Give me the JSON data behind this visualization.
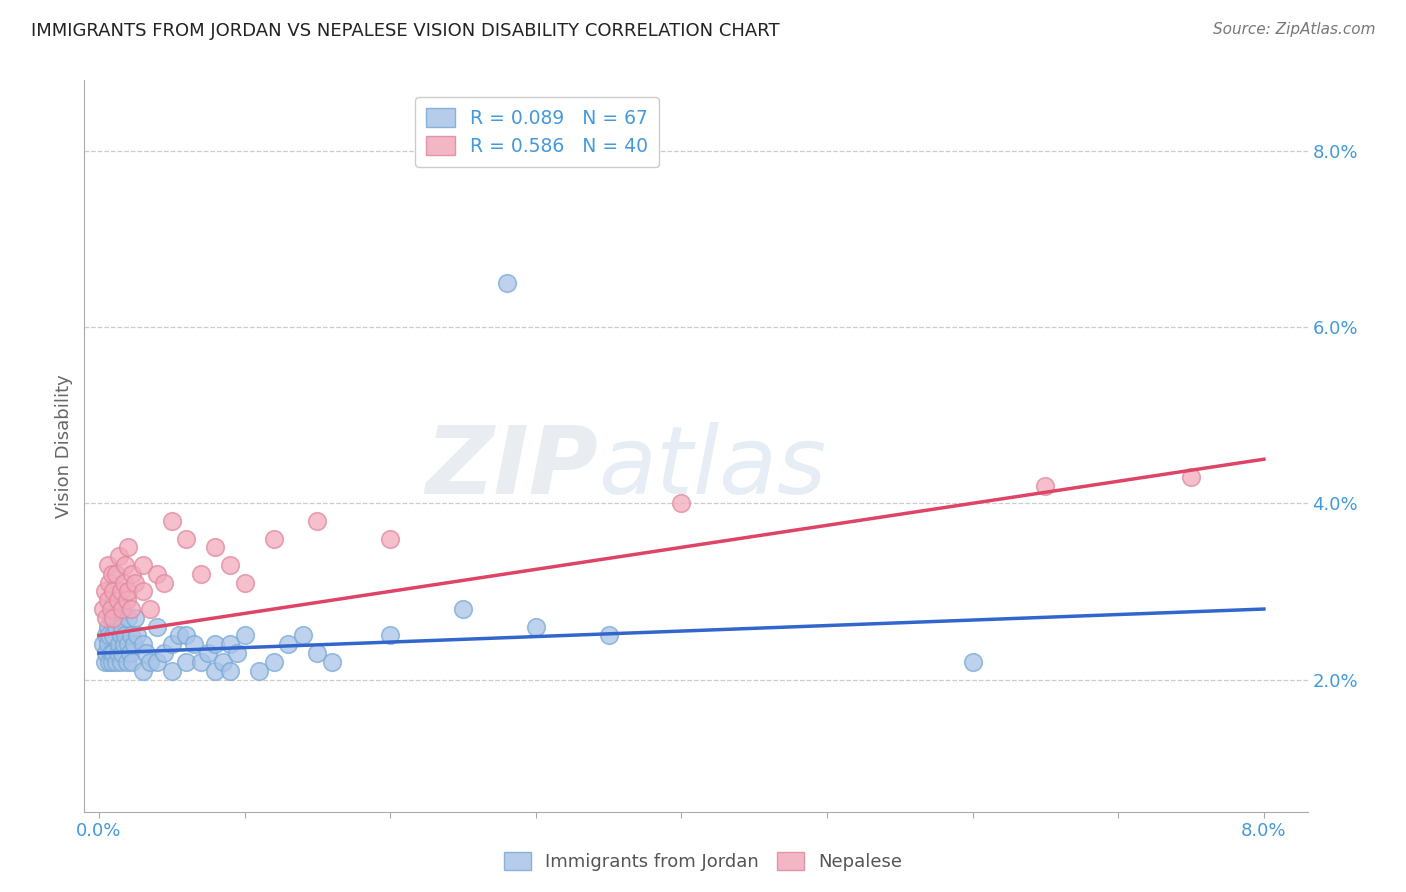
{
  "title": "IMMIGRANTS FROM JORDAN VS NEPALESE VISION DISABILITY CORRELATION CHART",
  "source": "Source: ZipAtlas.com",
  "ylabel_label": "Vision Disability",
  "x_tick_labels": [
    "0.0%",
    "",
    "",
    "",
    "",
    "",
    "",
    "",
    "8.0%"
  ],
  "x_tick_values": [
    0.0,
    0.01,
    0.02,
    0.03,
    0.04,
    0.05,
    0.06,
    0.07,
    0.08
  ],
  "y_tick_labels": [
    "2.0%",
    "4.0%",
    "6.0%",
    "8.0%"
  ],
  "y_tick_values": [
    0.02,
    0.04,
    0.06,
    0.08
  ],
  "xlim": [
    -0.001,
    0.083
  ],
  "ylim": [
    0.005,
    0.088
  ],
  "legend_R_blue": "R = 0.089",
  "legend_N_blue": "N = 67",
  "legend_R_pink": "R = 0.586",
  "legend_N_pink": "N = 40",
  "blue_scatter_color": "#a8c4e8",
  "blue_edge_color": "#7aaad4",
  "pink_scatter_color": "#f2aabb",
  "pink_edge_color": "#e088a0",
  "blue_line_color": "#3366cc",
  "pink_line_color": "#dd4466",
  "title_color": "#222222",
  "tick_color": "#4499dd",
  "watermark_color": "#e0e8f0",
  "jordan_x": [
    0.0003,
    0.0004,
    0.0005,
    0.0005,
    0.0006,
    0.0006,
    0.0007,
    0.0007,
    0.0008,
    0.0008,
    0.0009,
    0.001,
    0.001,
    0.001,
    0.0012,
    0.0012,
    0.0013,
    0.0013,
    0.0014,
    0.0015,
    0.0015,
    0.0016,
    0.0016,
    0.0017,
    0.0018,
    0.0019,
    0.002,
    0.002,
    0.0021,
    0.0022,
    0.0023,
    0.0024,
    0.0025,
    0.0026,
    0.003,
    0.003,
    0.0032,
    0.0035,
    0.004,
    0.004,
    0.0045,
    0.005,
    0.005,
    0.0055,
    0.006,
    0.006,
    0.0065,
    0.007,
    0.0075,
    0.008,
    0.008,
    0.0085,
    0.009,
    0.009,
    0.0095,
    0.01,
    0.011,
    0.012,
    0.013,
    0.014,
    0.015,
    0.016,
    0.02,
    0.025,
    0.03,
    0.035,
    0.06
  ],
  "jordan_y": [
    0.024,
    0.022,
    0.023,
    0.025,
    0.024,
    0.026,
    0.022,
    0.025,
    0.023,
    0.027,
    0.022,
    0.023,
    0.025,
    0.028,
    0.022,
    0.026,
    0.023,
    0.027,
    0.024,
    0.022,
    0.025,
    0.023,
    0.026,
    0.024,
    0.025,
    0.022,
    0.024,
    0.027,
    0.023,
    0.025,
    0.022,
    0.024,
    0.027,
    0.025,
    0.021,
    0.024,
    0.023,
    0.022,
    0.022,
    0.026,
    0.023,
    0.021,
    0.024,
    0.025,
    0.022,
    0.025,
    0.024,
    0.022,
    0.023,
    0.021,
    0.024,
    0.022,
    0.021,
    0.024,
    0.023,
    0.025,
    0.021,
    0.022,
    0.024,
    0.025,
    0.023,
    0.022,
    0.025,
    0.028,
    0.026,
    0.025,
    0.022
  ],
  "jordan_outlier_x": [
    0.028
  ],
  "jordan_outlier_y": [
    0.065
  ],
  "nepalese_x": [
    0.0003,
    0.0004,
    0.0005,
    0.0006,
    0.0006,
    0.0007,
    0.0008,
    0.0009,
    0.001,
    0.001,
    0.0012,
    0.0013,
    0.0014,
    0.0015,
    0.0016,
    0.0017,
    0.0018,
    0.0019,
    0.002,
    0.002,
    0.0022,
    0.0023,
    0.0025,
    0.003,
    0.003,
    0.0035,
    0.004,
    0.0045,
    0.005,
    0.006,
    0.007,
    0.008,
    0.009,
    0.01,
    0.012,
    0.015,
    0.02,
    0.04,
    0.065,
    0.075
  ],
  "nepalese_y": [
    0.028,
    0.03,
    0.027,
    0.033,
    0.029,
    0.031,
    0.028,
    0.032,
    0.027,
    0.03,
    0.032,
    0.029,
    0.034,
    0.03,
    0.028,
    0.031,
    0.033,
    0.029,
    0.03,
    0.035,
    0.028,
    0.032,
    0.031,
    0.03,
    0.033,
    0.028,
    0.032,
    0.031,
    0.038,
    0.036,
    0.032,
    0.035,
    0.033,
    0.031,
    0.036,
    0.038,
    0.036,
    0.04,
    0.042,
    0.043
  ],
  "blue_trend_x0": 0.0,
  "blue_trend_y0": 0.023,
  "blue_trend_x1": 0.08,
  "blue_trend_y1": 0.028,
  "pink_trend_x0": 0.0,
  "pink_trend_y0": 0.025,
  "pink_trend_x1": 0.08,
  "pink_trend_y1": 0.045
}
